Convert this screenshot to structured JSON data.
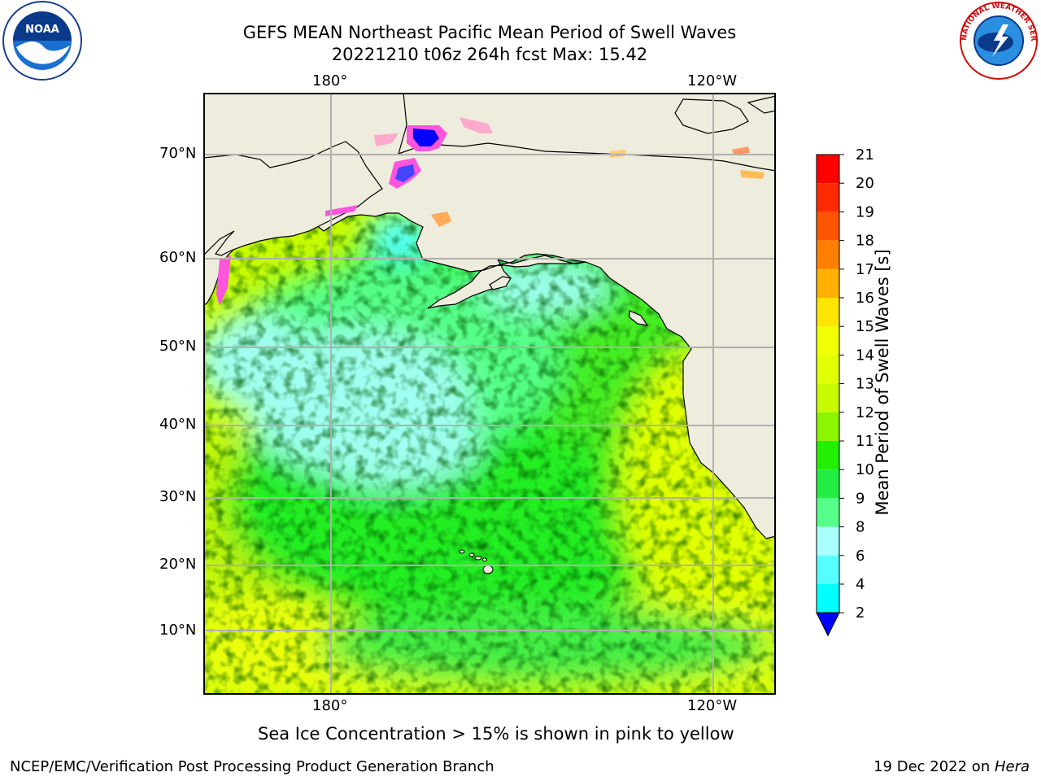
{
  "title": {
    "line1": "GEFS MEAN Northeast Pacific Mean Period of Swell Waves",
    "line2": "20221210 t06z 264h fcst   Max: 15.42"
  },
  "map": {
    "top_lon_labels": [
      "180°",
      "120°W"
    ],
    "bottom_lon_labels": [
      "180°",
      "120°W"
    ],
    "lat_labels": [
      "70°N",
      "60°N",
      "50°N",
      "40°N",
      "30°N",
      "20°N",
      "10°N"
    ],
    "land_color": "#eeecdc",
    "ocean_colors": {
      "cyan_light": "#9ffff0",
      "cyan": "#55ffff",
      "green_light": "#55ff88",
      "green": "#22ee22",
      "yellow_green": "#bbf20a",
      "yellow": "#eaff10",
      "ice_pink": "#ff55dd",
      "ice_blue": "#0000ff"
    }
  },
  "colorbar": {
    "label": "Mean Period of Swell Waves [s]",
    "ticks": [
      "21",
      "20",
      "19",
      "18",
      "17",
      "16",
      "15",
      "14",
      "13",
      "12",
      "11",
      "10",
      "9",
      "8",
      "6",
      "4",
      "2"
    ],
    "colors_top_to_bottom": [
      "#ff0000",
      "#ff2a00",
      "#ff5500",
      "#ff8000",
      "#ffb000",
      "#ffe500",
      "#f2ff00",
      "#e0ff00",
      "#c8fa00",
      "#8cf500",
      "#22f000",
      "#22ee44",
      "#55ff88",
      "#aaffff",
      "#55ffff",
      "#00ffff",
      "#0088ff"
    ],
    "extend_color": "#0000ff"
  },
  "caption": "Sea Ice Concentration > 15% is shown in pink to yellow",
  "footer": {
    "left": "NCEP/EMC/Verification Post Processing Product Generation Branch",
    "right_date": "19 Dec 2022 on ",
    "right_host": "Hera"
  },
  "logos": {
    "noaa": "NOAA",
    "nws": "NATIONAL WEATHER SERVICE"
  }
}
